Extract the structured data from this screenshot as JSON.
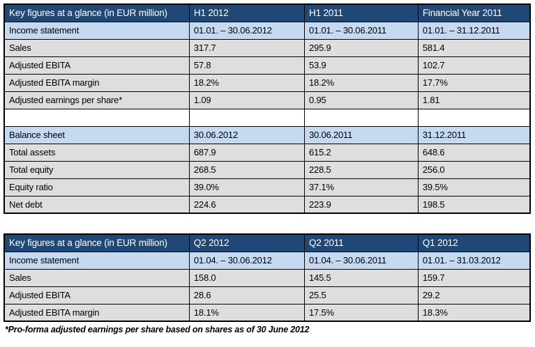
{
  "colors": {
    "header_bg": "#1F4876",
    "header_text": "#FFFFFF",
    "subheader_bg": "#C5D9F0",
    "data_row_bg": "#DEDEDE",
    "empty_row_bg": "#FFFFFF",
    "border": "#000000",
    "body_text": "#000000"
  },
  "table_half_year": {
    "columns": [
      "Key figures at a glance (in EUR million)",
      "H1 2012",
      "H1 2011",
      "Financial Year 2011"
    ],
    "rows": [
      {
        "type": "subheader",
        "cells": [
          "Income statement",
          "01.01. – 30.06.2012",
          "01.01. – 30.06.2011",
          "01.01. – 31.12.2011"
        ]
      },
      {
        "type": "data",
        "cells": [
          "Sales",
          "317.7",
          "295.9",
          "581.4"
        ]
      },
      {
        "type": "data",
        "cells": [
          "Adjusted EBITA",
          "57.8",
          "53.9",
          "102.7"
        ]
      },
      {
        "type": "data",
        "cells": [
          "Adjusted EBITA margin",
          "18.2%",
          "18.2%",
          "17.7%"
        ]
      },
      {
        "type": "data",
        "cells": [
          "Adjusted earnings per share*",
          "1.09",
          "0.95",
          "1.81"
        ]
      },
      {
        "type": "empty",
        "cells": [
          "",
          "",
          "",
          ""
        ]
      },
      {
        "type": "subheader",
        "cells": [
          "Balance sheet",
          "30.06.2012",
          "30.06.2011",
          "31.12.2011"
        ]
      },
      {
        "type": "data",
        "cells": [
          "Total assets",
          "687.9",
          "615.2",
          "648.6"
        ]
      },
      {
        "type": "data",
        "cells": [
          "Total equity",
          "268.5",
          "228.5",
          "256.0"
        ]
      },
      {
        "type": "data",
        "cells": [
          "Equity ratio",
          "39.0%",
          "37.1%",
          "39.5%"
        ]
      },
      {
        "type": "data",
        "cells": [
          "Net debt",
          "224.6",
          "223.9",
          "198.5"
        ]
      }
    ]
  },
  "table_quarterly": {
    "columns": [
      "Key figures at a glance (in EUR million)",
      "Q2 2012",
      "Q2 2011",
      "Q1 2012"
    ],
    "rows": [
      {
        "type": "subheader",
        "cells": [
          "Income statement",
          "01.04. – 30.06.2012",
          "01.04. – 30.06.2011",
          "01.01. – 31.03.2012"
        ]
      },
      {
        "type": "data",
        "cells": [
          "Sales",
          "158.0",
          "145.5",
          "159.7"
        ]
      },
      {
        "type": "data",
        "cells": [
          "Adjusted EBITA",
          "28.6",
          "25.5",
          "29.2"
        ]
      },
      {
        "type": "data",
        "cells": [
          "Adjusted EBITA margin",
          "18.1%",
          "17.5%",
          "18.3%"
        ]
      }
    ]
  },
  "footnote": "*Pro-forma adjusted earnings per share based on shares as of 30 June 2012"
}
